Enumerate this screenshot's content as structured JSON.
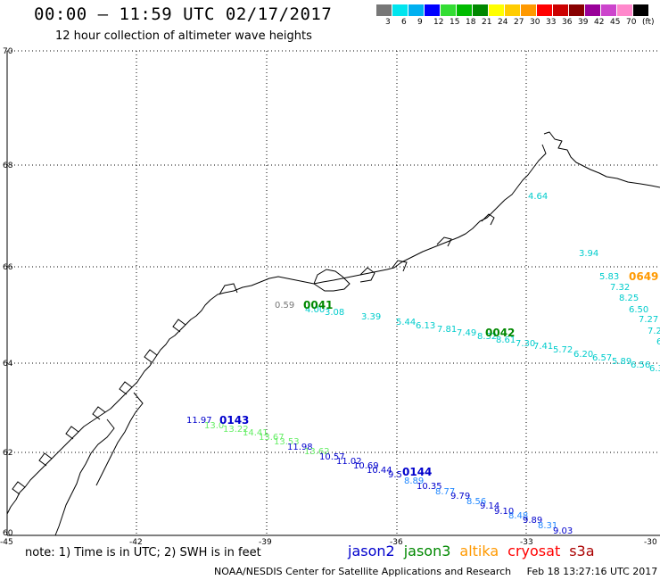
{
  "header": {
    "title": "00:00 – 11:59 UTC 02/17/2017",
    "subtitle": "12 hour collection of altimeter wave heights"
  },
  "colorbar": {
    "colors": [
      "#777777",
      "#00e5ee",
      "#00b0f0",
      "#0000ff",
      "#33dd33",
      "#00bb00",
      "#008800",
      "#ffff00",
      "#ffcc00",
      "#ff9900",
      "#ff0000",
      "#cc0000",
      "#880000",
      "#990099",
      "#cc44cc",
      "#ff88cc",
      "#000000"
    ],
    "labels": [
      "3",
      "6",
      "9",
      "12",
      "15",
      "18",
      "21",
      "24",
      "27",
      "30",
      "33",
      "36",
      "39",
      "42",
      "45",
      "70",
      "(ft)"
    ]
  },
  "map": {
    "lat_labels": [
      "70",
      "68",
      "66",
      "64",
      "62",
      "60"
    ],
    "lon_labels": [
      "-45",
      "-42",
      "-39",
      "-36",
      "-33",
      "-30"
    ],
    "passes": [
      {
        "id": "0041",
        "color": "#008800"
      },
      {
        "id": "0042",
        "color": "#008800"
      },
      {
        "id": "0143",
        "color": "#0000cc"
      },
      {
        "id": "0144",
        "color": "#0000cc"
      },
      {
        "id": "0649",
        "color": "#ff9900"
      }
    ],
    "values": [
      {
        "v": "4.64",
        "c": "#00cccc"
      },
      {
        "v": "3.94",
        "c": "#00cccc"
      },
      {
        "v": "5.83",
        "c": "#00cccc"
      },
      {
        "v": "7.32",
        "c": "#00cccc"
      },
      {
        "v": "8.25",
        "c": "#00cccc"
      },
      {
        "v": "6.50",
        "c": "#00cccc"
      },
      {
        "v": "7.27",
        "c": "#00cccc"
      },
      {
        "v": "7.2",
        "c": "#00cccc"
      },
      {
        "v": "6",
        "c": "#00cccc"
      },
      {
        "v": "0.59",
        "c": "#777777"
      },
      {
        "v": "4.00",
        "c": "#00cccc"
      },
      {
        "v": "3.08",
        "c": "#00cccc"
      },
      {
        "v": "3.39",
        "c": "#00cccc"
      },
      {
        "v": "5.44",
        "c": "#00cccc"
      },
      {
        "v": "6.13",
        "c": "#00cccc"
      },
      {
        "v": "7.81",
        "c": "#00cccc"
      },
      {
        "v": "7.49",
        "c": "#00cccc"
      },
      {
        "v": "8.32",
        "c": "#00cccc"
      },
      {
        "v": "8.61",
        "c": "#00cccc"
      },
      {
        "v": "7.30",
        "c": "#00cccc"
      },
      {
        "v": "7.41",
        "c": "#00cccc"
      },
      {
        "v": "5.72",
        "c": "#00cccc"
      },
      {
        "v": "6.20",
        "c": "#00cccc"
      },
      {
        "v": "6.57",
        "c": "#00cccc"
      },
      {
        "v": "5.89",
        "c": "#00cccc"
      },
      {
        "v": "6.56",
        "c": "#00cccc"
      },
      {
        "v": "6.3",
        "c": "#00cccc"
      },
      {
        "v": "11.97",
        "c": "#0000cc"
      },
      {
        "v": "13.0",
        "c": "#66ee66"
      },
      {
        "v": "13.22",
        "c": "#66ee66"
      },
      {
        "v": "14.41",
        "c": "#66ee66"
      },
      {
        "v": "13.67",
        "c": "#66ee66"
      },
      {
        "v": "13.53",
        "c": "#66ee66"
      },
      {
        "v": "11.98",
        "c": "#0000cc"
      },
      {
        "v": "13.62",
        "c": "#66ee66"
      },
      {
        "v": "10.57",
        "c": "#0000cc"
      },
      {
        "v": "11.02",
        "c": "#0000cc"
      },
      {
        "v": "10.69",
        "c": "#0000cc"
      },
      {
        "v": "10.44",
        "c": "#0000cc"
      },
      {
        "v": "9.5",
        "c": "#0000cc"
      },
      {
        "v": "8.89",
        "c": "#2288ff"
      },
      {
        "v": "10.35",
        "c": "#0000cc"
      },
      {
        "v": "8.77",
        "c": "#2288ff"
      },
      {
        "v": "9.79",
        "c": "#0000cc"
      },
      {
        "v": "8.56",
        "c": "#2288ff"
      },
      {
        "v": "9.14",
        "c": "#0000cc"
      },
      {
        "v": "9.10",
        "c": "#0000cc"
      },
      {
        "v": "8.48",
        "c": "#2288ff"
      },
      {
        "v": "9.89",
        "c": "#0000cc"
      },
      {
        "v": "8.31",
        "c": "#2288ff"
      },
      {
        "v": "9.03",
        "c": "#0000cc"
      }
    ]
  },
  "footer": {
    "note": "note: 1) Time is in UTC; 2) SWH is in feet",
    "satellites": [
      {
        "name": "jason2",
        "color": "#0000cc"
      },
      {
        "name": "jason3",
        "color": "#008800"
      },
      {
        "name": "altika",
        "color": "#ff9900"
      },
      {
        "name": "cryosat",
        "color": "#ff0000"
      },
      {
        "name": "s3a",
        "color": "#aa0000"
      }
    ],
    "credit": "NOAA/NESDIS Center for Satellite Applications and Research",
    "timestamp": "Feb 18 13:27:16 UTC 2017"
  }
}
